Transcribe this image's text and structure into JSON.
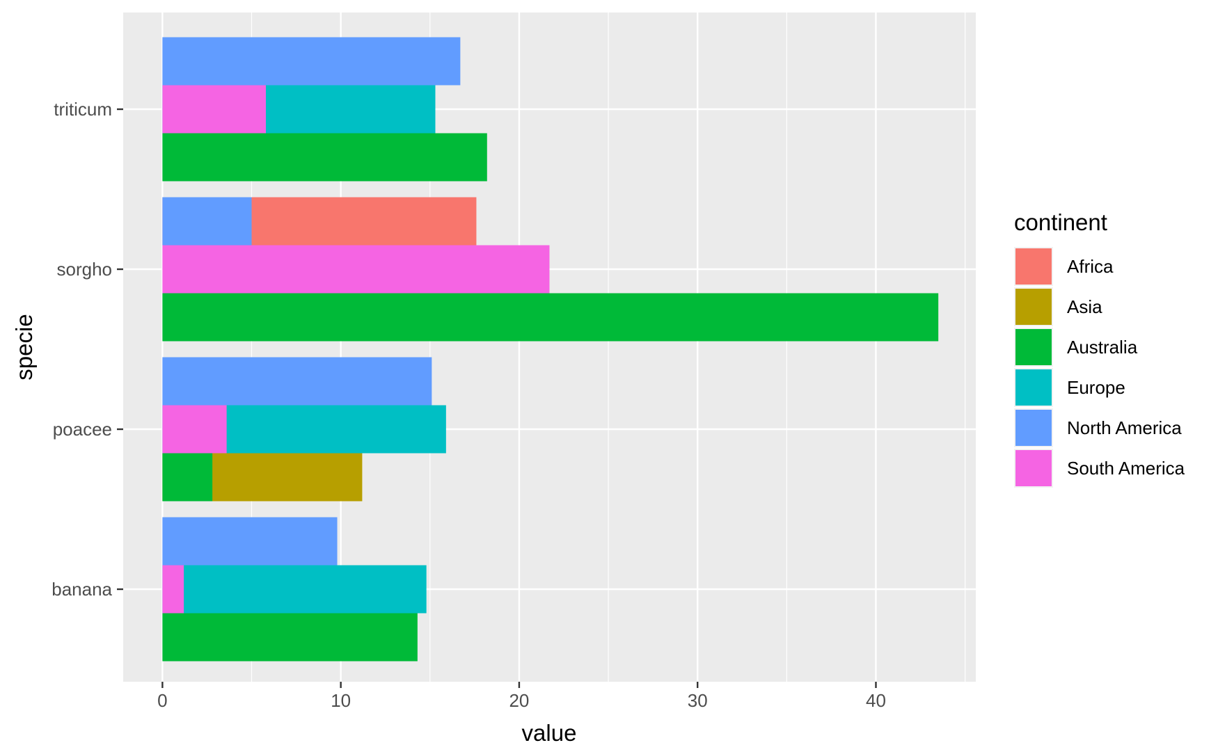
{
  "chart_data": {
    "type": "bar",
    "orientation": "horizontal",
    "position": "overlapping dodge",
    "xlabel": "value",
    "ylabel": "specie",
    "xlim": [
      -2.2,
      45.6
    ],
    "x_ticks": [
      0,
      10,
      20,
      30,
      40
    ],
    "x_tick_labels": [
      "0",
      "10",
      "20",
      "30",
      "40"
    ],
    "categories": [
      "triticum",
      "sorgho",
      "poacee",
      "banana"
    ],
    "grid": true,
    "legend": {
      "title": "continent",
      "placement": "right",
      "entries": [
        "Africa",
        "Asia",
        "Australia",
        "Europe",
        "North America",
        "South America"
      ]
    },
    "colors": {
      "Africa": "#F8766D",
      "Asia": "#B79F00",
      "Australia": "#00BA38",
      "Europe": "#00BFC4",
      "North America": "#619CFF",
      "South America": "#F564E3"
    },
    "bars": [
      {
        "category": "triticum",
        "continent": "North America",
        "value": 16.7
      },
      {
        "category": "triticum",
        "continent": "Europe",
        "value": 15.3
      },
      {
        "category": "triticum",
        "continent": "South America",
        "value": 5.8
      },
      {
        "category": "triticum",
        "continent": "Australia",
        "value": 18.2
      },
      {
        "category": "sorgho",
        "continent": "Africa",
        "value": 17.6
      },
      {
        "category": "sorgho",
        "continent": "North America",
        "value": 5.0
      },
      {
        "category": "sorgho",
        "continent": "South America",
        "value": 21.7
      },
      {
        "category": "sorgho",
        "continent": "Australia",
        "value": 43.5
      },
      {
        "category": "poacee",
        "continent": "North America",
        "value": 15.1
      },
      {
        "category": "poacee",
        "continent": "Europe",
        "value": 15.9
      },
      {
        "category": "poacee",
        "continent": "South America",
        "value": 3.6
      },
      {
        "category": "poacee",
        "continent": "Asia",
        "value": 11.2
      },
      {
        "category": "poacee",
        "continent": "Australia",
        "value": 2.8
      },
      {
        "category": "banana",
        "continent": "North America",
        "value": 9.8
      },
      {
        "category": "banana",
        "continent": "Europe",
        "value": 14.8
      },
      {
        "category": "banana",
        "continent": "South America",
        "value": 1.2
      },
      {
        "category": "banana",
        "continent": "Australia",
        "value": 14.3
      }
    ]
  }
}
